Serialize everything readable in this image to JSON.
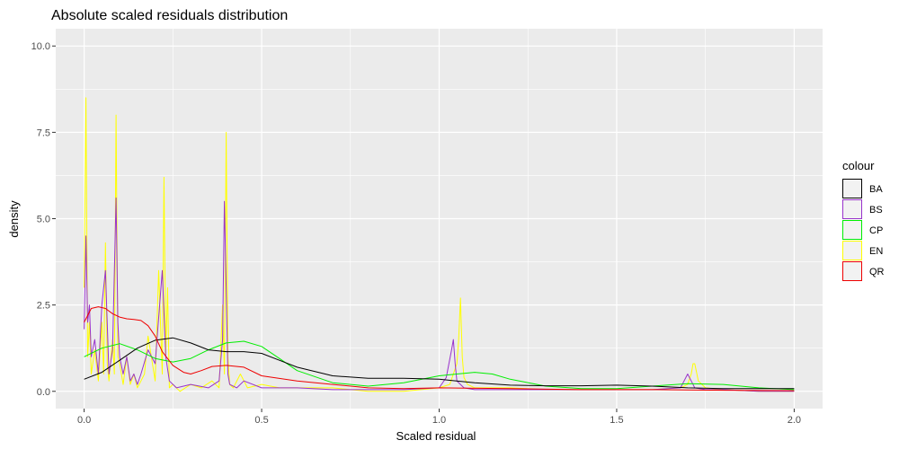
{
  "chart_data": {
    "type": "line",
    "title": "Absolute scaled residuals distribution",
    "xlabel": "Scaled residual",
    "ylabel": "density",
    "xlim": [
      -0.08,
      2.08
    ],
    "ylim": [
      -0.5,
      10.5
    ],
    "x_ticks": [
      0.0,
      0.5,
      1.0,
      1.5,
      2.0
    ],
    "x_tick_labels": [
      "0.0",
      "0.5",
      "1.0",
      "1.5",
      "2.0"
    ],
    "y_ticks": [
      0.0,
      2.5,
      5.0,
      7.5,
      10.0
    ],
    "y_tick_labels": [
      "0.0",
      "2.5",
      "5.0",
      "7.5",
      "10.0"
    ],
    "grid": true,
    "legend": {
      "title": "colour",
      "position": "right",
      "entries": [
        {
          "label": "BA",
          "color": "#000000"
        },
        {
          "label": "BS",
          "color": "#9932CC"
        },
        {
          "label": "CP",
          "color": "#00EE00"
        },
        {
          "label": "EN",
          "color": "#FFFF00"
        },
        {
          "label": "QR",
          "color": "#EE0000"
        }
      ]
    },
    "series": [
      {
        "name": "EN",
        "color": "#FFFF00",
        "x": [
          0.0,
          0.005,
          0.01,
          0.015,
          0.02,
          0.03,
          0.04,
          0.05,
          0.055,
          0.06,
          0.065,
          0.07,
          0.08,
          0.085,
          0.09,
          0.095,
          0.1,
          0.11,
          0.12,
          0.13,
          0.14,
          0.15,
          0.16,
          0.17,
          0.18,
          0.2,
          0.21,
          0.22,
          0.225,
          0.23,
          0.235,
          0.24,
          0.25,
          0.27,
          0.3,
          0.33,
          0.36,
          0.38,
          0.39,
          0.395,
          0.4,
          0.405,
          0.41,
          0.42,
          0.44,
          0.46,
          0.5,
          0.55,
          0.6,
          0.7,
          0.8,
          0.9,
          1.0,
          1.03,
          1.05,
          1.055,
          1.06,
          1.065,
          1.07,
          1.08,
          1.1,
          1.2,
          1.3,
          1.4,
          1.5,
          1.6,
          1.68,
          1.7,
          1.71,
          1.715,
          1.72,
          1.73,
          1.75,
          1.8,
          1.9,
          2.0
        ],
        "y": [
          3.0,
          8.5,
          1.0,
          2.0,
          0.5,
          1.2,
          0.3,
          2.0,
          0.5,
          4.3,
          0.8,
          0.3,
          1.5,
          0.5,
          8.0,
          1.0,
          0.8,
          0.2,
          1.0,
          0.2,
          0.5,
          0.1,
          0.3,
          0.5,
          1.6,
          0.3,
          3.5,
          0.5,
          6.2,
          1.0,
          3.0,
          0.1,
          0.2,
          0.0,
          0.2,
          0.1,
          0.3,
          0.1,
          2.5,
          0.5,
          7.5,
          1.0,
          0.2,
          0.1,
          0.5,
          0.1,
          0.2,
          0.1,
          0.1,
          0.1,
          0.0,
          0.0,
          0.1,
          0.2,
          0.8,
          1.5,
          2.7,
          1.0,
          0.4,
          0.2,
          0.1,
          0.1,
          0.05,
          0.05,
          0.05,
          0.05,
          0.1,
          0.2,
          0.5,
          0.8,
          0.8,
          0.3,
          0.1,
          0.05,
          0.0,
          0.0
        ]
      },
      {
        "name": "BS",
        "color": "#9932CC",
        "x": [
          0.0,
          0.005,
          0.01,
          0.015,
          0.02,
          0.03,
          0.04,
          0.05,
          0.06,
          0.07,
          0.08,
          0.09,
          0.095,
          0.1,
          0.11,
          0.12,
          0.13,
          0.14,
          0.15,
          0.16,
          0.18,
          0.2,
          0.22,
          0.23,
          0.24,
          0.26,
          0.3,
          0.35,
          0.38,
          0.39,
          0.395,
          0.4,
          0.405,
          0.41,
          0.43,
          0.45,
          0.5,
          0.6,
          0.7,
          0.8,
          0.9,
          1.0,
          1.02,
          1.035,
          1.04,
          1.045,
          1.05,
          1.07,
          1.1,
          1.2,
          1.4,
          1.6,
          1.68,
          1.7,
          1.71,
          1.72,
          1.75,
          1.8,
          1.9,
          2.0
        ],
        "y": [
          1.8,
          4.5,
          2.0,
          2.5,
          1.0,
          1.5,
          0.5,
          2.5,
          3.5,
          0.5,
          1.2,
          5.6,
          2.0,
          1.0,
          0.5,
          1.0,
          0.3,
          0.5,
          0.2,
          0.5,
          1.2,
          0.8,
          3.5,
          1.0,
          0.3,
          0.1,
          0.2,
          0.1,
          0.3,
          1.5,
          5.5,
          3.0,
          0.5,
          0.2,
          0.1,
          0.3,
          0.1,
          0.1,
          0.05,
          0.05,
          0.05,
          0.1,
          0.4,
          1.2,
          1.5,
          0.8,
          0.3,
          0.1,
          0.05,
          0.05,
          0.05,
          0.05,
          0.1,
          0.5,
          0.3,
          0.1,
          0.05,
          0.05,
          0.0,
          0.0
        ]
      },
      {
        "name": "CP",
        "color": "#00EE00",
        "x": [
          0.0,
          0.05,
          0.1,
          0.15,
          0.2,
          0.25,
          0.3,
          0.35,
          0.4,
          0.45,
          0.5,
          0.55,
          0.6,
          0.7,
          0.8,
          0.9,
          1.0,
          1.05,
          1.1,
          1.15,
          1.2,
          1.3,
          1.4,
          1.5,
          1.6,
          1.7,
          1.8,
          1.9,
          2.0
        ],
        "y": [
          1.0,
          1.25,
          1.38,
          1.2,
          0.95,
          0.85,
          0.95,
          1.2,
          1.4,
          1.45,
          1.3,
          0.95,
          0.6,
          0.25,
          0.15,
          0.25,
          0.45,
          0.5,
          0.55,
          0.5,
          0.35,
          0.15,
          0.08,
          0.08,
          0.15,
          0.22,
          0.2,
          0.1,
          0.05
        ]
      },
      {
        "name": "BA",
        "color": "#000000",
        "x": [
          0.0,
          0.05,
          0.1,
          0.15,
          0.2,
          0.25,
          0.3,
          0.35,
          0.4,
          0.45,
          0.5,
          0.55,
          0.6,
          0.7,
          0.8,
          0.9,
          1.0,
          1.1,
          1.2,
          1.3,
          1.4,
          1.5,
          1.6,
          1.7,
          1.8,
          1.9,
          2.0
        ],
        "y": [
          0.35,
          0.55,
          0.9,
          1.25,
          1.48,
          1.55,
          1.4,
          1.2,
          1.15,
          1.15,
          1.1,
          0.9,
          0.7,
          0.45,
          0.38,
          0.38,
          0.35,
          0.25,
          0.18,
          0.16,
          0.16,
          0.18,
          0.15,
          0.1,
          0.08,
          0.08,
          0.08
        ]
      },
      {
        "name": "QR",
        "color": "#EE0000",
        "x": [
          0.0,
          0.02,
          0.04,
          0.06,
          0.08,
          0.1,
          0.12,
          0.14,
          0.16,
          0.18,
          0.2,
          0.22,
          0.25,
          0.28,
          0.3,
          0.33,
          0.36,
          0.4,
          0.45,
          0.5,
          0.6,
          0.7,
          0.8,
          0.9,
          1.0,
          1.2,
          1.4,
          1.6,
          1.8,
          2.0
        ],
        "y": [
          2.0,
          2.4,
          2.45,
          2.4,
          2.25,
          2.15,
          2.1,
          2.08,
          2.05,
          1.9,
          1.6,
          1.15,
          0.75,
          0.55,
          0.5,
          0.6,
          0.72,
          0.75,
          0.7,
          0.45,
          0.3,
          0.2,
          0.1,
          0.08,
          0.1,
          0.08,
          0.05,
          0.05,
          0.03,
          0.02
        ]
      }
    ]
  }
}
